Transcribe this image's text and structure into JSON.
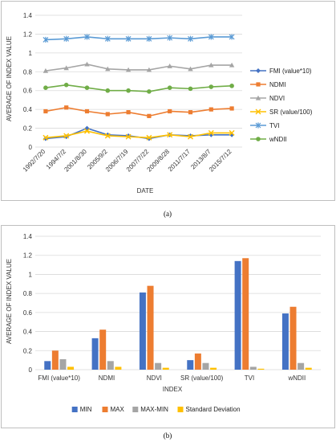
{
  "chart_data": [
    {
      "type": "line",
      "title": "",
      "xlabel": "DATE",
      "ylabel": "AVERAGE OF INDEX VALUE",
      "ylim": [
        0,
        1.4
      ],
      "yticks": [
        "0",
        "0.2",
        "0.4",
        "0.6",
        "0.8",
        "1",
        "1.2",
        "1.4"
      ],
      "grid": true,
      "legend": "right",
      "categories": [
        "1992/7/20",
        "1994/7/2",
        "2001/8/30",
        "2005/9/2",
        "2006/7/19",
        "2007/7/22",
        "2009/8/28",
        "2011/7/17",
        "2013/8/7",
        "2015/7/12"
      ],
      "series": [
        {
          "name": "FMI (value*10)",
          "color": "#4472c4",
          "marker": "diamond",
          "values": [
            0.09,
            0.11,
            0.2,
            0.13,
            0.12,
            0.09,
            0.13,
            0.12,
            0.13,
            0.13
          ]
        },
        {
          "name": "NDMI",
          "color": "#ed7d31",
          "marker": "square",
          "values": [
            0.38,
            0.42,
            0.38,
            0.35,
            0.37,
            0.33,
            0.38,
            0.37,
            0.4,
            0.41
          ]
        },
        {
          "name": "NDVI",
          "color": "#a5a5a5",
          "marker": "triangle",
          "values": [
            0.81,
            0.84,
            0.88,
            0.83,
            0.82,
            0.82,
            0.86,
            0.83,
            0.87,
            0.87
          ]
        },
        {
          "name": "SR (value/100)",
          "color": "#ffc000",
          "marker": "x",
          "values": [
            0.1,
            0.12,
            0.17,
            0.12,
            0.11,
            0.1,
            0.13,
            0.11,
            0.15,
            0.15
          ]
        },
        {
          "name": "TVI",
          "color": "#5b9bd5",
          "marker": "star",
          "values": [
            1.14,
            1.15,
            1.17,
            1.15,
            1.15,
            1.15,
            1.16,
            1.15,
            1.17,
            1.17
          ]
        },
        {
          "name": "wNDII",
          "color": "#70ad47",
          "marker": "circle",
          "values": [
            0.63,
            0.66,
            0.63,
            0.6,
            0.6,
            0.59,
            0.63,
            0.62,
            0.64,
            0.65
          ]
        }
      ],
      "caption": "(a)"
    },
    {
      "type": "bar",
      "title": "",
      "xlabel": "INDEX",
      "ylabel": "AVERAGE OF INDEX VALUE",
      "ylim": [
        0,
        1.4
      ],
      "yticks": [
        "0",
        "0.2",
        "0.4",
        "0.6",
        "0.8",
        "1",
        "1.2",
        "1.4"
      ],
      "grid": true,
      "legend": "bottom",
      "categories": [
        "FMI (value*10)",
        "NDMI",
        "NDVI",
        "SR (value/100)",
        "TVI",
        "wNDII"
      ],
      "series": [
        {
          "name": "MIN",
          "color": "#4472c4",
          "values": [
            0.09,
            0.33,
            0.81,
            0.1,
            1.14,
            0.59
          ]
        },
        {
          "name": "MAX",
          "color": "#ed7d31",
          "values": [
            0.2,
            0.42,
            0.88,
            0.17,
            1.17,
            0.66
          ]
        },
        {
          "name": "MAX-MIN",
          "color": "#a5a5a5",
          "values": [
            0.11,
            0.09,
            0.07,
            0.07,
            0.03,
            0.07
          ]
        },
        {
          "name": "Standard Deviation",
          "color": "#ffc000",
          "values": [
            0.03,
            0.03,
            0.02,
            0.02,
            0.01,
            0.02
          ]
        }
      ],
      "caption": "(b)"
    }
  ]
}
